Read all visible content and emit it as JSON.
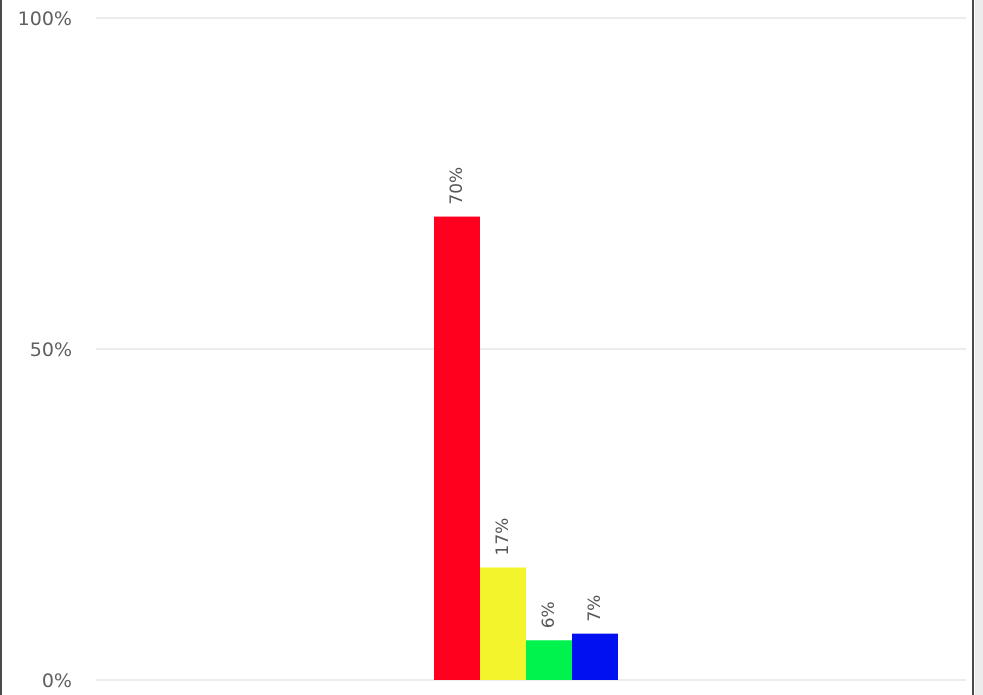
{
  "chart_data": {
    "type": "bar",
    "title": "",
    "xlabel": "",
    "ylabel": "",
    "ylim": [
      0,
      100
    ],
    "y_ticks": [
      {
        "value": 0,
        "label": "0%"
      },
      {
        "value": 50,
        "label": "50%"
      },
      {
        "value": 100,
        "label": "100%"
      }
    ],
    "grid": true,
    "bars": [
      {
        "value": 70,
        "label": "70%",
        "color": "#ff001e"
      },
      {
        "value": 17,
        "label": "17%",
        "color": "#f4f42c"
      },
      {
        "value": 6,
        "label": "6%",
        "color": "#00f24c"
      },
      {
        "value": 7,
        "label": "7%",
        "color": "#0010f0"
      }
    ]
  },
  "colors": {
    "gridline": "#ececec",
    "frame": "#4a4a4a",
    "edge_strip": "#ececec"
  }
}
